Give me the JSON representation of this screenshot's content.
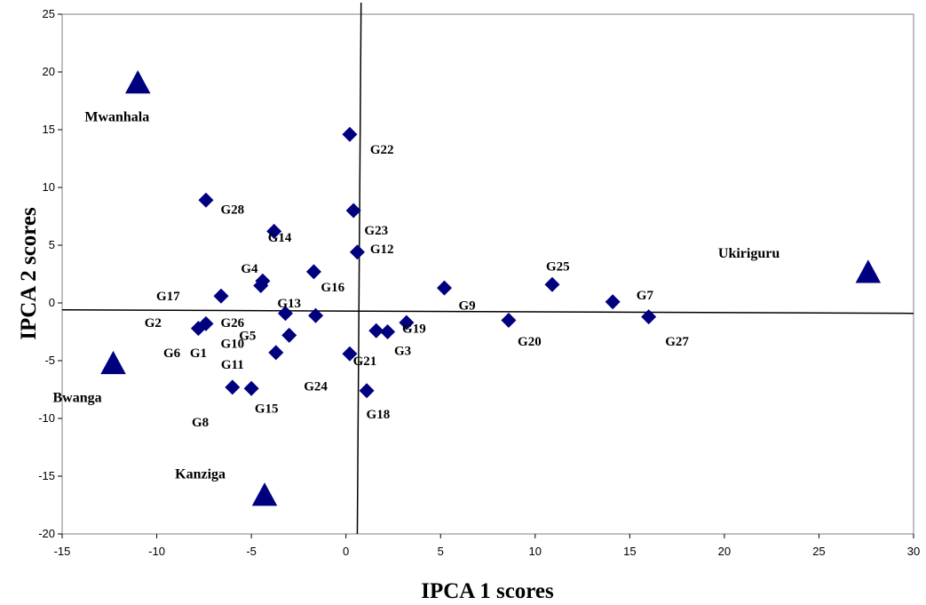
{
  "chart_data": {
    "type": "scatter",
    "title": "",
    "xlabel": "IPCA 1 scores",
    "ylabel": "IPCA 2 scores",
    "xlim": [
      -15,
      30
    ],
    "ylim": [
      -20,
      25
    ],
    "x_ticks": [
      -15,
      -10,
      -5,
      0,
      5,
      10,
      15,
      20,
      25,
      30
    ],
    "y_ticks": [
      -20,
      -15,
      -10,
      -5,
      0,
      5,
      10,
      15,
      20,
      25
    ],
    "grid": false,
    "legend": "none",
    "colors": {
      "marker": "#00007F",
      "axis": "#000000"
    },
    "series": [
      {
        "marker": "diamond",
        "points": [
          {
            "x": 0.2,
            "y": 14.6
          },
          {
            "x": 0.4,
            "y": 8.0
          },
          {
            "x": -7.4,
            "y": 8.9
          },
          {
            "x": -3.8,
            "y": 6.2
          },
          {
            "x": 0.6,
            "y": 4.4
          },
          {
            "x": -4.4,
            "y": 1.9
          },
          {
            "x": -4.5,
            "y": 1.5
          },
          {
            "x": -1.7,
            "y": 2.7
          },
          {
            "x": -6.6,
            "y": 0.6
          },
          {
            "x": -3.2,
            "y": -0.9
          },
          {
            "x": -1.6,
            "y": -1.1
          },
          {
            "x": -7.8,
            "y": -2.2
          },
          {
            "x": -7.4,
            "y": -1.8
          },
          {
            "x": -3.0,
            "y": -2.8
          },
          {
            "x": -3.7,
            "y": -4.3
          },
          {
            "x": 0.2,
            "y": -4.4
          },
          {
            "x": 1.6,
            "y": -2.4
          },
          {
            "x": 2.2,
            "y": -2.5
          },
          {
            "x": 3.2,
            "y": -1.7
          },
          {
            "x": 5.2,
            "y": 1.3
          },
          {
            "x": 8.6,
            "y": -1.5
          },
          {
            "x": 10.9,
            "y": 1.6
          },
          {
            "x": 14.1,
            "y": 0.1
          },
          {
            "x": 16.0,
            "y": -1.2
          },
          {
            "x": -6.0,
            "y": -7.3
          },
          {
            "x": -5.0,
            "y": -7.4
          },
          {
            "x": 1.1,
            "y": -7.6
          }
        ]
      },
      {
        "marker": "triangle",
        "points": [
          {
            "x": -11.0,
            "y": 19.0
          },
          {
            "x": 27.6,
            "y": 2.6
          },
          {
            "x": -12.3,
            "y": -5.3
          },
          {
            "x": -4.3,
            "y": -16.7
          }
        ]
      }
    ],
    "annotations": [
      {
        "text": "G22",
        "x": 1.9,
        "y": 13.3
      },
      {
        "text": "G28",
        "x": -6.0,
        "y": 8.1
      },
      {
        "text": "G23",
        "x": 1.6,
        "y": 6.3
      },
      {
        "text": "G14",
        "x": -3.5,
        "y": 5.7
      },
      {
        "text": "G12",
        "x": 1.9,
        "y": 4.7
      },
      {
        "text": "G4",
        "x": -5.1,
        "y": 3.0
      },
      {
        "text": "G16",
        "x": -0.7,
        "y": 1.4
      },
      {
        "text": "G17",
        "x": -9.4,
        "y": 0.6
      },
      {
        "text": "G13",
        "x": -3.0,
        "y": 0.0
      },
      {
        "text": "G2",
        "x": -10.2,
        "y": -1.7
      },
      {
        "text": "G26",
        "x": -6.0,
        "y": -1.7
      },
      {
        "text": "G5",
        "x": -5.2,
        "y": -2.8
      },
      {
        "text": "G10",
        "x": -6.0,
        "y": -3.5
      },
      {
        "text": "G6",
        "x": -9.2,
        "y": -4.3
      },
      {
        "text": "G1",
        "x": -7.8,
        "y": -4.3
      },
      {
        "text": "G11",
        "x": -6.0,
        "y": -5.3
      },
      {
        "text": "G19",
        "x": 3.6,
        "y": -2.2
      },
      {
        "text": "G3",
        "x": 3.0,
        "y": -4.1
      },
      {
        "text": "G21",
        "x": 1.0,
        "y": -5.0
      },
      {
        "text": "G24",
        "x": -1.6,
        "y": -7.2
      },
      {
        "text": "G18",
        "x": 1.7,
        "y": -9.6
      },
      {
        "text": "G15",
        "x": -4.2,
        "y": -9.1
      },
      {
        "text": "G8",
        "x": -7.7,
        "y": -10.3
      },
      {
        "text": "G9",
        "x": 6.4,
        "y": -0.2
      },
      {
        "text": "G20",
        "x": 9.7,
        "y": -3.3
      },
      {
        "text": "G25",
        "x": 11.2,
        "y": 3.2
      },
      {
        "text": "G7",
        "x": 15.8,
        "y": 0.7
      },
      {
        "text": "G27",
        "x": 17.5,
        "y": -3.3
      }
    ],
    "environments": [
      {
        "text": "Mwanhala",
        "x": -12.1,
        "y": 16.1
      },
      {
        "text": "Ukiriguru",
        "x": 21.3,
        "y": 4.3
      },
      {
        "text": "Bwanga",
        "x": -14.2,
        "y": -8.2
      },
      {
        "text": "Kanziga",
        "x": -7.7,
        "y": -14.8
      }
    ],
    "reference_lines": {
      "horizontal": {
        "x1": -15,
        "y1": -0.6,
        "x2": 30,
        "y2": -0.9
      },
      "vertical": {
        "x1": 0.8,
        "y1": 26.0,
        "x2": 0.6,
        "y2": -20
      }
    }
  }
}
